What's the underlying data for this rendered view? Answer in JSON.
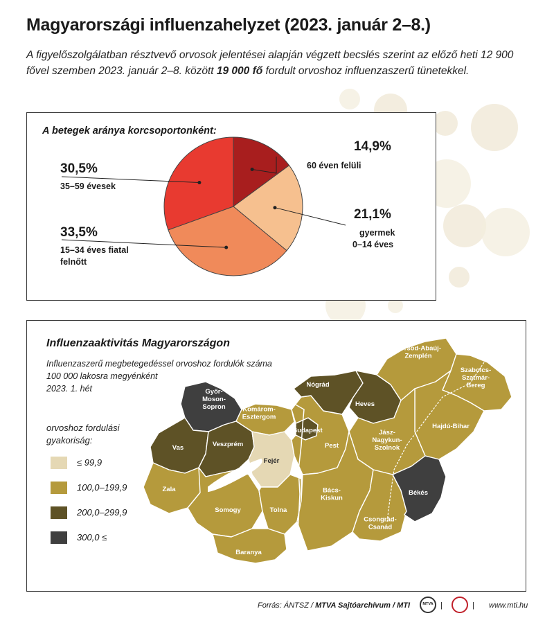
{
  "title": "Magyarországi influenzahelyzet (2023. január 2–8.)",
  "subtitle": {
    "part1": "A figyelőszolgálatban résztvevő orvosok jelentései alapján végzett becslés szerint az előző heti 12 900 fővel szemben 2023. január 2–8. között ",
    "bold": "19 000 fő",
    "part2": " fordult orvoshoz influenzaszerű tünetekkel."
  },
  "chart_data": [
    {
      "type": "pie",
      "title": "A betegek aránya korcsoportonként:",
      "slices": [
        {
          "label": "60 éven felüli",
          "value": 14.9,
          "pct": "14,9%",
          "color": "#a81e1e"
        },
        {
          "label": "gyermek 0–14 éves",
          "label_lines": [
            "gyermek",
            "0–14 éves"
          ],
          "value": 21.1,
          "pct": "21,1%",
          "color": "#f6c08f"
        },
        {
          "label": "15–34 éves fiatal felnőtt",
          "label_lines": [
            "15–34 éves fiatal",
            "felnőtt"
          ],
          "value": 33.5,
          "pct": "33,5%",
          "color": "#f08a5a"
        },
        {
          "label": "35–59 évesek",
          "value": 30.5,
          "pct": "30,5%",
          "color": "#e83a30"
        }
      ]
    },
    {
      "type": "choropleth",
      "title": "Influenzaaktivitás Magyarországon",
      "description_lines": [
        "Influenzaszerű megbetegedéssel orvoshoz fordulók száma",
        "100 000 lakosra megyénként",
        "2023. 1. hét"
      ],
      "legend_title_lines": [
        "orvoshoz fordulási",
        "gyakoriság:"
      ],
      "legend": [
        {
          "label": "≤ 99,9",
          "color": "#e5d8b4"
        },
        {
          "label": "100,0–199,9",
          "color": "#b59a3c"
        },
        {
          "label": "200,0–299,9",
          "color": "#5e5226"
        },
        {
          "label": "300,0 ≤",
          "color": "#3f3f3f"
        }
      ],
      "regions": [
        {
          "name": "Győr-Moson-Sopron",
          "lines": [
            "Győr-",
            "Moson-",
            "Sopron"
          ],
          "class": "300,0 ≤"
        },
        {
          "name": "Komárom-Esztergom",
          "lines": [
            "Komárom-",
            "Esztergom"
          ],
          "class": "100,0–199,9"
        },
        {
          "name": "Vas",
          "lines": [
            "Vas"
          ],
          "class": "200,0–299,9"
        },
        {
          "name": "Veszprém",
          "lines": [
            "Veszprém"
          ],
          "class": "200,0–299,9"
        },
        {
          "name": "Fejér",
          "lines": [
            "Fejér"
          ],
          "class": "≤ 99,9"
        },
        {
          "name": "Zala",
          "lines": [
            "Zala"
          ],
          "class": "100,0–199,9"
        },
        {
          "name": "Somogy",
          "lines": [
            "Somogy"
          ],
          "class": "100,0–199,9"
        },
        {
          "name": "Tolna",
          "lines": [
            "Tolna"
          ],
          "class": "100,0–199,9"
        },
        {
          "name": "Baranya",
          "lines": [
            "Baranya"
          ],
          "class": "100,0–199,9"
        },
        {
          "name": "Budapest",
          "lines": [
            "Budapest"
          ],
          "class": "200,0–299,9"
        },
        {
          "name": "Pest",
          "lines": [
            "Pest"
          ],
          "class": "100,0–199,9"
        },
        {
          "name": "Nógrád",
          "lines": [
            "Nógrád"
          ],
          "class": "200,0–299,9"
        },
        {
          "name": "Heves",
          "lines": [
            "Heves"
          ],
          "class": "200,0–299,9"
        },
        {
          "name": "Borsod-Abaúj-Zemplén",
          "lines": [
            "Borsod-Abaúj-",
            "Zemplén"
          ],
          "class": "100,0–199,9"
        },
        {
          "name": "Szabolcs-Szatmár-Bereg",
          "lines": [
            "Szabolcs-",
            "Szatmár-",
            "Bereg"
          ],
          "class": "100,0–199,9"
        },
        {
          "name": "Hajdú-Bihar",
          "lines": [
            "Hajdú-Bihar"
          ],
          "class": "100,0–199,9"
        },
        {
          "name": "Jász-Nagykun-Szolnok",
          "lines": [
            "Jász-",
            "Nagykun-",
            "Szolnok"
          ],
          "class": "100,0–199,9"
        },
        {
          "name": "Bács-Kiskun",
          "lines": [
            "Bács-",
            "Kiskun"
          ],
          "class": "100,0–199,9"
        },
        {
          "name": "Csongrád-Csanád",
          "lines": [
            "Csongrád-",
            "Csanád"
          ],
          "class": "100,0–199,9"
        },
        {
          "name": "Békés",
          "lines": [
            "Békés"
          ],
          "class": "300,0 ≤"
        }
      ]
    }
  ],
  "footer": {
    "source_prefix": "Forrás: ÁNTSZ / ",
    "source_bold": "MTVA Sajtóarchívum / MTI",
    "logo1": "MTVA",
    "sep": "|",
    "url": "www.mti.hu"
  }
}
